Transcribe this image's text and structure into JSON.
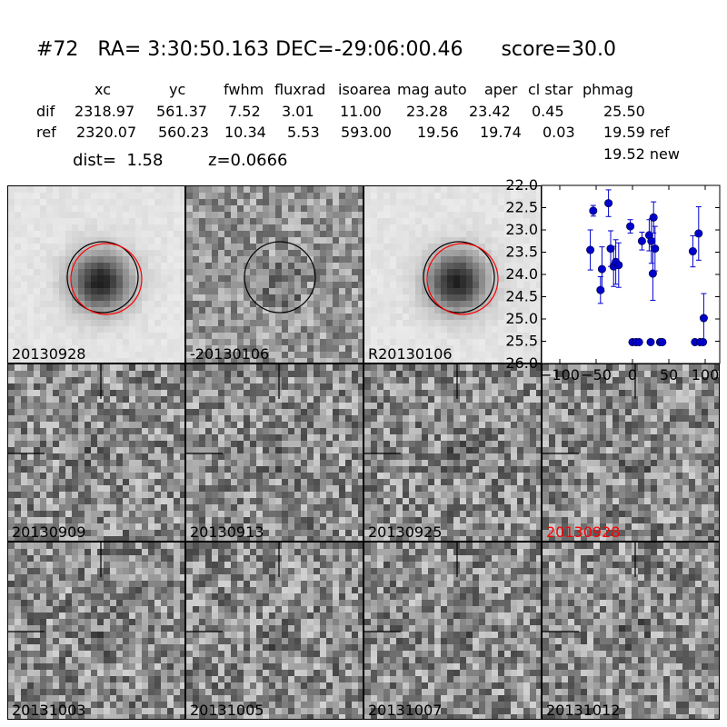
{
  "header": {
    "id": "#72",
    "ra_label": "RA= 3:30:50.163",
    "dec_label": "DEC=-29:06:00.46",
    "score_label": "score=30.0"
  },
  "table": {
    "col_headers": [
      "xc",
      "yc",
      "fwhm",
      "fluxrad",
      "isoarea",
      "mag auto",
      "aper",
      "cl star",
      "phmag"
    ],
    "rows": [
      {
        "label": "dif",
        "values": [
          "2318.97",
          "561.37",
          "7.52",
          "3.01",
          "11.00",
          "23.28",
          "23.42",
          "0.45"
        ],
        "phmag": "25.50"
      },
      {
        "label": "ref",
        "values": [
          "2320.07",
          "560.23",
          "10.34",
          "5.53",
          "593.00",
          "19.56",
          "19.74",
          "0.03"
        ],
        "phmag": "19.59 ref"
      }
    ],
    "extra_phmag": "19.52 new",
    "dist_label": "dist=  1.58",
    "z_label": "z=0.0666"
  },
  "tiles": [
    {
      "label": "20130928",
      "kind": "galaxy",
      "seed": 11,
      "label_color": "#000000"
    },
    {
      "label": "-20130106",
      "kind": "diff",
      "seed": 23,
      "label_color": "#000000"
    },
    {
      "label": "R20130106",
      "kind": "galaxy",
      "seed": 37,
      "label_color": "#000000"
    },
    {
      "label": "20130909",
      "kind": "noise",
      "seed": 41,
      "label_color": "#000000"
    },
    {
      "label": "20130913",
      "kind": "noise",
      "seed": 53,
      "label_color": "#000000"
    },
    {
      "label": "20130925",
      "kind": "noise",
      "seed": 67,
      "label_color": "#000000"
    },
    {
      "label": "20130928",
      "kind": "noise",
      "seed": 71,
      "label_color": "#ff0000"
    },
    {
      "label": "20131003",
      "kind": "noise",
      "seed": 83,
      "label_color": "#000000"
    },
    {
      "label": "20131005",
      "kind": "noise",
      "seed": 97,
      "label_color": "#000000"
    },
    {
      "label": "20131007",
      "kind": "noise",
      "seed": 101,
      "label_color": "#000000"
    },
    {
      "label": "20131012",
      "kind": "noise",
      "seed": 113,
      "label_color": "#000000"
    }
  ],
  "colors": {
    "point": "#0000cc",
    "circle_ref": "#000000",
    "circle_new": "#ff0000"
  },
  "chart_data": {
    "type": "scatter",
    "title": "",
    "xlabel": "",
    "ylabel": "",
    "xlim": [
      -125,
      120
    ],
    "ylim": [
      26.0,
      22.0
    ],
    "y_inverted": true,
    "x_ticks": [
      -100,
      -50,
      0,
      50,
      100
    ],
    "x_tick_labels": [
      "−100",
      "−50",
      "0",
      "50",
      "100"
    ],
    "y_ticks": [
      22.0,
      22.5,
      23.0,
      23.5,
      24.0,
      24.5,
      25.0,
      25.5,
      26.0
    ],
    "y_tick_labels": [
      "22.0",
      "22.5",
      "23.0",
      "23.5",
      "24.0",
      "24.5",
      "25.0",
      "25.5",
      "26.0"
    ],
    "series": [
      {
        "points": [
          {
            "x": -58,
            "y": 23.45,
            "err": 0.45
          },
          {
            "x": -54,
            "y": 22.57,
            "err": 0.12
          },
          {
            "x": -44,
            "y": 24.35,
            "err": 0.3
          },
          {
            "x": -42,
            "y": 23.88,
            "err": 0.5
          },
          {
            "x": -33,
            "y": 22.4,
            "err": 0.3
          },
          {
            "x": -30,
            "y": 23.42,
            "err": 0.4
          },
          {
            "x": -26,
            "y": 23.82,
            "err": 0.45
          },
          {
            "x": -23,
            "y": 23.72,
            "err": 0.5
          },
          {
            "x": -19,
            "y": 23.79,
            "err": 0.5
          },
          {
            "x": -3,
            "y": 22.92,
            "err": 0.15
          },
          {
            "x": 0,
            "y": 25.52,
            "err": 0.05
          },
          {
            "x": 5,
            "y": 25.52,
            "err": 0.05
          },
          {
            "x": 9,
            "y": 25.52,
            "err": 0.05
          },
          {
            "x": 13,
            "y": 23.25,
            "err": 0.2
          },
          {
            "x": 23,
            "y": 23.12,
            "err": 0.35
          },
          {
            "x": 25,
            "y": 25.52,
            "err": 0.05
          },
          {
            "x": 26,
            "y": 23.25,
            "err": 0.5
          },
          {
            "x": 28,
            "y": 23.98,
            "err": 0.6
          },
          {
            "x": 29,
            "y": 22.72,
            "err": 0.35
          },
          {
            "x": 31,
            "y": 23.42,
            "err": 0.5
          },
          {
            "x": 38,
            "y": 25.52,
            "err": 0.05
          },
          {
            "x": 41,
            "y": 25.52,
            "err": 0.05
          },
          {
            "x": 83,
            "y": 23.48,
            "err": 0.35
          },
          {
            "x": 86,
            "y": 25.52,
            "err": 0.05
          },
          {
            "x": 91,
            "y": 23.08,
            "err": 0.6
          },
          {
            "x": 93,
            "y": 25.52,
            "err": 0.05
          },
          {
            "x": 97,
            "y": 25.52,
            "err": 0.05
          },
          {
            "x": 98,
            "y": 24.98,
            "err": 0.55
          }
        ]
      }
    ]
  }
}
